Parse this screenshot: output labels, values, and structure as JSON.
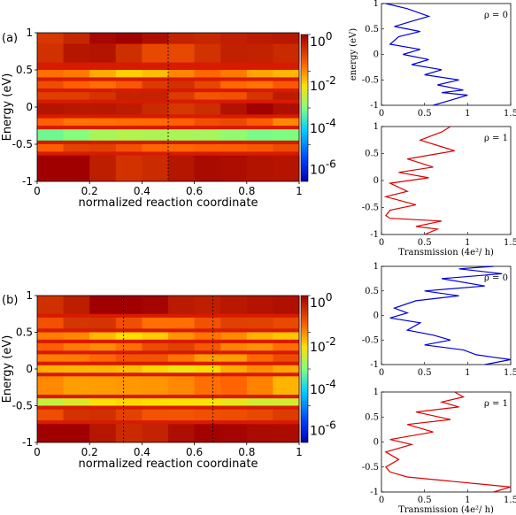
{
  "panels": [
    {
      "label": "(a)",
      "heatmap": {
        "xlabel": "normalized reaction coordinate",
        "ylabel": "Energy (eV)",
        "x_ticks": [
          "0",
          "0.2",
          "0.4",
          "0.6",
          "0.8",
          "1"
        ],
        "y_ticks": [
          "1",
          "0.5",
          "0",
          "-0.5",
          "-1"
        ],
        "dashed_x": [
          0.5
        ],
        "colorbar": {
          "ticks": [
            {
              "base": "10",
              "exp": "0"
            },
            {
              "base": "10",
              "exp": "-2"
            },
            {
              "base": "10",
              "exp": "-4"
            },
            {
              "base": "10",
              "exp": "-6"
            }
          ]
        }
      },
      "transmission": [
        {
          "annotation": "ρ = 0",
          "color": "#0000dd",
          "ylabel": "energy (eV)",
          "xlabel": "",
          "x_ticks": [
            "0",
            "0.5",
            "1",
            "1.5"
          ],
          "y_ticks": [
            "1",
            "0.5",
            "0",
            "-0.5",
            "-1"
          ]
        },
        {
          "annotation": "ρ = 1",
          "color": "#dd0000",
          "ylabel": "",
          "xlabel": "Transmission (4e²/ h)",
          "x_ticks": [
            "0",
            "0.5",
            "1",
            "1.5"
          ],
          "y_ticks": [
            "1",
            "0.5",
            "0",
            "-0.5",
            "-1"
          ]
        }
      ]
    },
    {
      "label": "(b)",
      "heatmap": {
        "xlabel": "normalized reaction coordinate",
        "ylabel": "Energy (eV)",
        "x_ticks": [
          "0",
          "0.2",
          "0.4",
          "0.6",
          "0.8",
          "1"
        ],
        "y_ticks": [
          "1",
          "0.5",
          "0",
          "-0.5",
          "-1"
        ],
        "dashed_x": [
          0.33,
          0.67
        ],
        "colorbar": {
          "ticks": [
            {
              "base": "10",
              "exp": "0"
            },
            {
              "base": "10",
              "exp": "-2"
            },
            {
              "base": "10",
              "exp": "-4"
            },
            {
              "base": "10",
              "exp": "-6"
            }
          ]
        }
      },
      "transmission": [
        {
          "annotation": "ρ = 0",
          "color": "#0000dd",
          "ylabel": "",
          "xlabel": "",
          "x_ticks": [
            "0",
            "0.5",
            "1",
            "1.5"
          ],
          "y_ticks": [
            "1",
            "0.5",
            "0",
            "-0.5",
            "-1"
          ]
        },
        {
          "annotation": "ρ = 1",
          "color": "#dd0000",
          "ylabel": "",
          "xlabel": "Transmission (4e²/ h)",
          "x_ticks": [
            "0",
            "0.5",
            "1",
            "1.5"
          ],
          "y_ticks": [
            "1",
            "0.5",
            "0",
            "-0.5",
            "-1"
          ]
        }
      ]
    }
  ],
  "chart_data": [
    {
      "type": "heatmap",
      "panel": "(a)",
      "xlabel": "normalized reaction coordinate",
      "ylabel": "Energy (eV)",
      "xlim": [
        0,
        1
      ],
      "ylim": [
        -1,
        1
      ],
      "colorbar_range": [
        "1e-6",
        "1e0"
      ],
      "colorbar_scale": "log",
      "bands": [
        {
          "energy": 1.0,
          "to": 0.85,
          "level": 0.3
        },
        {
          "energy": 0.85,
          "to": 0.6,
          "level": 0.6
        },
        {
          "energy": 0.5,
          "to": 0.4,
          "level": 1.6
        },
        {
          "energy": 0.35,
          "to": 0.25,
          "level": 1.0
        },
        {
          "energy": 0.2,
          "to": 0.1,
          "level": 0.7
        },
        {
          "energy": 0.05,
          "to": -0.1,
          "level": 0.4
        },
        {
          "energy": -0.15,
          "to": -0.25,
          "level": 1.2
        },
        {
          "energy": -0.3,
          "to": -0.45,
          "level": 2.8
        },
        {
          "energy": -0.5,
          "to": -0.6,
          "level": 1.1
        },
        {
          "energy": -0.65,
          "to": -1.0,
          "level": 0.3
        }
      ]
    },
    {
      "type": "line",
      "panel": "(a)",
      "annotation": "ρ = 0",
      "ylabel": "energy (eV)",
      "xlim": [
        0,
        1.5
      ],
      "ylim": [
        -1,
        1
      ],
      "x": [
        0.05,
        0.3,
        0.55,
        0.35,
        0.15,
        0.45,
        0.2,
        0.1,
        0.45,
        0.25,
        0.55,
        0.35,
        0.7,
        0.5,
        0.9,
        0.65,
        0.95,
        0.7,
        1.0,
        0.8,
        0.6
      ],
      "y": [
        1,
        0.9,
        0.75,
        0.65,
        0.55,
        0.45,
        0.35,
        0.2,
        0.1,
        0.0,
        -0.1,
        -0.2,
        -0.3,
        -0.4,
        -0.5,
        -0.6,
        -0.7,
        -0.75,
        -0.8,
        -0.9,
        -1
      ]
    },
    {
      "type": "line",
      "panel": "(a)",
      "annotation": "ρ = 1",
      "xlabel": "Transmission (4e²/ h)",
      "xlim": [
        0,
        1.5
      ],
      "ylim": [
        -1,
        1
      ],
      "x": [
        0.8,
        0.7,
        0.45,
        0.85,
        0.3,
        0.6,
        0.2,
        0.55,
        0.1,
        0.3,
        0.05,
        0.4,
        0.1,
        0.05,
        0.1,
        0.7,
        0.4,
        0.65,
        0.5
      ],
      "y": [
        1,
        0.9,
        0.75,
        0.55,
        0.4,
        0.25,
        0.15,
        0.05,
        -0.05,
        -0.2,
        -0.3,
        -0.45,
        -0.55,
        -0.65,
        -0.7,
        -0.75,
        -0.85,
        -0.9,
        -1
      ]
    },
    {
      "type": "heatmap",
      "panel": "(b)",
      "xlabel": "normalized reaction coordinate",
      "ylabel": "Energy (eV)",
      "xlim": [
        0,
        1
      ],
      "ylim": [
        -1,
        1
      ],
      "colorbar_range": [
        "1e-6",
        "1e0"
      ],
      "colorbar_scale": "log",
      "bands": [
        {
          "energy": 1.0,
          "to": 0.75,
          "level": 0.2
        },
        {
          "energy": 0.7,
          "to": 0.55,
          "level": 1.0
        },
        {
          "energy": 0.5,
          "to": 0.4,
          "level": 1.7
        },
        {
          "energy": 0.35,
          "to": 0.25,
          "level": 1.2
        },
        {
          "energy": 0.2,
          "to": 0.1,
          "level": 1.3
        },
        {
          "energy": 0.05,
          "to": -0.05,
          "level": 1.9
        },
        {
          "energy": -0.1,
          "to": -0.35,
          "level": 1.5
        },
        {
          "energy": -0.4,
          "to": -0.5,
          "level": 2.2
        },
        {
          "energy": -0.55,
          "to": -0.7,
          "level": 0.9
        },
        {
          "energy": -0.75,
          "to": -1.0,
          "level": 0.2
        }
      ]
    },
    {
      "type": "line",
      "panel": "(b)",
      "annotation": "ρ = 0",
      "xlim": [
        0,
        1.5
      ],
      "ylim": [
        -1,
        1
      ],
      "x": [
        1.3,
        0.9,
        1.4,
        0.7,
        1.2,
        0.5,
        0.9,
        0.4,
        0.15,
        0.3,
        0.1,
        0.45,
        0.3,
        0.6,
        0.8,
        0.5,
        0.95,
        1.1,
        1.3,
        1.5,
        1.2
      ],
      "y": [
        1,
        0.95,
        0.85,
        0.75,
        0.6,
        0.5,
        0.4,
        0.3,
        0.15,
        0.05,
        -0.05,
        -0.15,
        -0.3,
        -0.4,
        -0.5,
        -0.6,
        -0.7,
        -0.8,
        -0.85,
        -0.9,
        -1
      ]
    },
    {
      "type": "line",
      "panel": "(b)",
      "annotation": "ρ = 1",
      "xlabel": "Transmission (4e²/ h)",
      "xlim": [
        0,
        1.5
      ],
      "ylim": [
        -1,
        1
      ],
      "x": [
        0.85,
        0.95,
        0.7,
        0.9,
        0.4,
        0.8,
        0.3,
        0.6,
        0.1,
        0.35,
        0.05,
        0.2,
        0.05,
        0.1,
        0.3,
        0.6,
        0.9,
        1.2,
        1.5,
        1.3
      ],
      "y": [
        1,
        0.9,
        0.8,
        0.7,
        0.6,
        0.45,
        0.35,
        0.2,
        0.05,
        -0.05,
        -0.2,
        -0.35,
        -0.5,
        -0.6,
        -0.7,
        -0.75,
        -0.8,
        -0.85,
        -0.9,
        -1
      ]
    }
  ]
}
